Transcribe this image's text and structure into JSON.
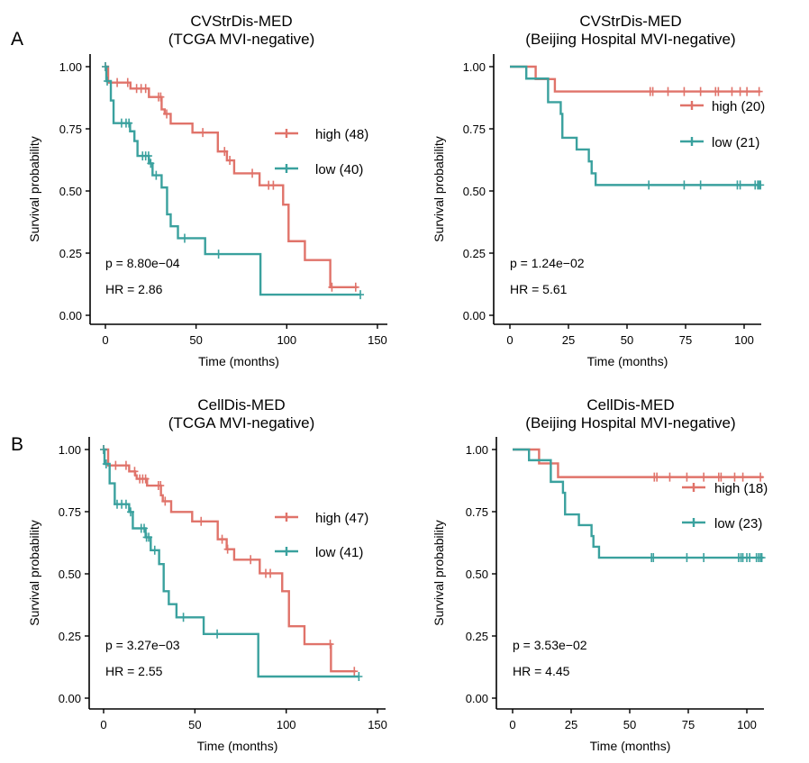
{
  "colors": {
    "high": "#E0736A",
    "low": "#3AA19E",
    "axis": "#000000"
  },
  "chart_data": [
    {
      "type": "line",
      "panel_letter": "A",
      "title": [
        "CVStrDis-MED",
        "(TCGA MVI-negative)"
      ],
      "xlabel": "Time (months)",
      "ylabel": "Survival probability",
      "xlim": [
        0,
        150
      ],
      "ylim": [
        0,
        1
      ],
      "x_ticks": [
        "0",
        "50",
        "100",
        "150"
      ],
      "x_tick_values": [
        0,
        50,
        100,
        150
      ],
      "y_ticks": [
        "0.00",
        "0.25",
        "0.50",
        "0.75",
        "1.00"
      ],
      "y_tick_values": [
        0,
        0.25,
        0.5,
        0.75,
        1
      ],
      "p_text": "p =  8.80e−04",
      "hr_text": "HR =  2.86",
      "series": [
        {
          "name": "high (48)",
          "group": "high",
          "end": 139,
          "steps": [
            [
              1.5,
              0.936
            ],
            [
              13.8,
              0.912
            ],
            [
              24,
              0.878
            ],
            [
              31,
              0.828
            ],
            [
              32.7,
              0.81
            ],
            [
              36,
              0.771
            ],
            [
              48,
              0.735
            ],
            [
              62,
              0.659
            ],
            [
              67,
              0.623
            ],
            [
              71,
              0.571
            ],
            [
              85,
              0.523
            ],
            [
              98,
              0.445
            ],
            [
              101,
              0.298
            ],
            [
              110,
              0.222
            ],
            [
              124,
              0.113
            ]
          ],
          "censored": [
            0,
            6.5,
            12.3,
            17.2,
            19.7,
            22.2,
            29.3,
            30.5,
            33.8,
            53.7,
            65.7,
            68.6,
            81,
            90,
            92.6,
            124.9,
            138
          ]
        },
        {
          "name": "low (40)",
          "group": "low",
          "end": 140.6,
          "steps": [
            [
              0.5,
              0.942
            ],
            [
              3,
              0.864
            ],
            [
              4.5,
              0.773
            ],
            [
              13.6,
              0.74
            ],
            [
              16,
              0.701
            ],
            [
              17.7,
              0.641
            ],
            [
              24,
              0.611
            ],
            [
              26,
              0.563
            ],
            [
              31,
              0.514
            ],
            [
              34,
              0.406
            ],
            [
              36,
              0.358
            ],
            [
              40,
              0.31
            ],
            [
              55,
              0.246
            ],
            [
              85.5,
              0.083
            ]
          ],
          "censored": [
            0,
            1,
            8.9,
            11.4,
            13,
            20.5,
            22.2,
            23.8,
            25,
            28,
            43.7,
            62.4,
            140.6
          ]
        }
      ]
    },
    {
      "type": "line",
      "panel_letter": "",
      "title": [
        "CVStrDis-MED",
        "(Beijing Hospital MVI-negative)"
      ],
      "xlabel": "Time (months)",
      "ylabel": "Survival probability",
      "xlim": [
        0,
        107
      ],
      "ylim": [
        0,
        1
      ],
      "x_ticks": [
        "0",
        "25",
        "50",
        "75",
        "100"
      ],
      "x_tick_values": [
        0,
        25,
        50,
        75,
        100
      ],
      "y_ticks": [
        "0.00",
        "0.25",
        "0.50",
        "0.75",
        "1.00"
      ],
      "y_tick_values": [
        0,
        0.25,
        0.5,
        0.75,
        1
      ],
      "p_text": "p = 1.24e−02",
      "hr_text": "HR =  5.61",
      "series": [
        {
          "name": "high (20)",
          "group": "high",
          "end": 107,
          "steps": [
            [
              11,
              0.95
            ],
            [
              19.2,
              0.9
            ]
          ],
          "censored": [
            59.9,
            61,
            67.5,
            74.4,
            81.4,
            87.8,
            89,
            94.8,
            98.3,
            101.2,
            106.4
          ]
        },
        {
          "name": "low (21)",
          "group": "low",
          "end": 107,
          "steps": [
            [
              7,
              0.952
            ],
            [
              16.3,
              0.857
            ],
            [
              21.7,
              0.81
            ],
            [
              22.4,
              0.714
            ],
            [
              28.5,
              0.667
            ],
            [
              33.7,
              0.619
            ],
            [
              34.9,
              0.571
            ],
            [
              36.6,
              0.524
            ]
          ],
          "censored": [
            59.3,
            74.4,
            81.4,
            97.1,
            98.3,
            104.7,
            105.8,
            106.4,
            107
          ]
        }
      ]
    },
    {
      "type": "line",
      "panel_letter": "B",
      "title": [
        "CellDis-MED",
        "(TCGA MVI-negative)"
      ],
      "xlabel": "Time (months)",
      "ylabel": "Survival probability",
      "xlim": [
        0,
        150
      ],
      "ylim": [
        0,
        1
      ],
      "x_ticks": [
        "0",
        "50",
        "100",
        "150"
      ],
      "x_tick_values": [
        0,
        50,
        100,
        150
      ],
      "y_ticks": [
        "0.00",
        "0.25",
        "0.50",
        "0.75",
        "1.00"
      ],
      "y_tick_values": [
        0,
        0.25,
        0.5,
        0.75,
        1
      ],
      "p_text": "p =  3.27e−03",
      "hr_text": "HR =  2.55",
      "series": [
        {
          "name": "high (47)",
          "group": "high",
          "end": 138,
          "steps": [
            [
              2.5,
              0.936
            ],
            [
              14,
              0.912
            ],
            [
              17.3,
              0.896
            ],
            [
              18.1,
              0.882
            ],
            [
              23.8,
              0.855
            ],
            [
              31.4,
              0.816
            ],
            [
              32.4,
              0.792
            ],
            [
              37,
              0.749
            ],
            [
              48.5,
              0.711
            ],
            [
              62.5,
              0.639
            ],
            [
              67.4,
              0.599
            ],
            [
              71.5,
              0.557
            ],
            [
              85.5,
              0.502
            ],
            [
              97.8,
              0.43
            ],
            [
              101.5,
              0.289
            ],
            [
              110,
              0.217
            ],
            [
              124.5,
              0.108
            ]
          ],
          "censored": [
            0,
            6.6,
            12.3,
            17,
            19.8,
            21.4,
            23,
            30,
            31.2,
            33.7,
            53.4,
            64.9,
            67.9,
            80.5,
            88.8,
            91.3,
            124.1,
            137.3
          ]
        },
        {
          "name": "low (41)",
          "group": "low",
          "end": 139.8,
          "steps": [
            [
              0.5,
              0.942
            ],
            [
              3.3,
              0.864
            ],
            [
              6.1,
              0.78
            ],
            [
              14,
              0.749
            ],
            [
              16,
              0.683
            ],
            [
              23,
              0.647
            ],
            [
              25.8,
              0.595
            ],
            [
              30.4,
              0.539
            ],
            [
              32.9,
              0.43
            ],
            [
              35.7,
              0.378
            ],
            [
              39.9,
              0.325
            ],
            [
              54.8,
              0.258
            ],
            [
              84.7,
              0.087
            ]
          ],
          "censored": [
            0,
            1.4,
            7.4,
            9.9,
            12.3,
            14.8,
            20.6,
            22.2,
            23.5,
            24.7,
            28,
            43.7,
            62.2,
            139.8
          ]
        }
      ]
    },
    {
      "type": "line",
      "panel_letter": "",
      "title": [
        "CellDis-MED",
        "(Beijing Hospital MVI-negative)"
      ],
      "xlabel": "Time (months)",
      "ylabel": "Survival probability",
      "xlim": [
        0,
        107
      ],
      "ylim": [
        0,
        1
      ],
      "x_ticks": [
        "0",
        "25",
        "50",
        "75",
        "100"
      ],
      "x_tick_values": [
        0,
        25,
        50,
        75,
        100
      ],
      "y_ticks": [
        "0.00",
        "0.25",
        "0.50",
        "0.75",
        "1.00"
      ],
      "y_tick_values": [
        0,
        0.25,
        0.5,
        0.75,
        1
      ],
      "p_text": "p =  3.53e−02",
      "hr_text": "HR =  4.45",
      "series": [
        {
          "name": "high (18)",
          "group": "high",
          "end": 107,
          "steps": [
            [
              11.3,
              0.944
            ],
            [
              19.4,
              0.889
            ]
          ],
          "censored": [
            60.5,
            61.6,
            67.1,
            74.4,
            81.6,
            88,
            89,
            94.8,
            98.3,
            105.8
          ]
        },
        {
          "name": "low (23)",
          "group": "low",
          "end": 107,
          "steps": [
            [
              7,
              0.957
            ],
            [
              16.3,
              0.87
            ],
            [
              21.5,
              0.826
            ],
            [
              22.4,
              0.739
            ],
            [
              28.3,
              0.696
            ],
            [
              33.7,
              0.652
            ],
            [
              34.5,
              0.609
            ],
            [
              36.9,
              0.565
            ]
          ],
          "censored": [
            59.3,
            60.1,
            74.4,
            81.6,
            96.5,
            97.5,
            98.3,
            100,
            101.2,
            104.1,
            105,
            105.8,
            106.4
          ]
        }
      ]
    }
  ]
}
